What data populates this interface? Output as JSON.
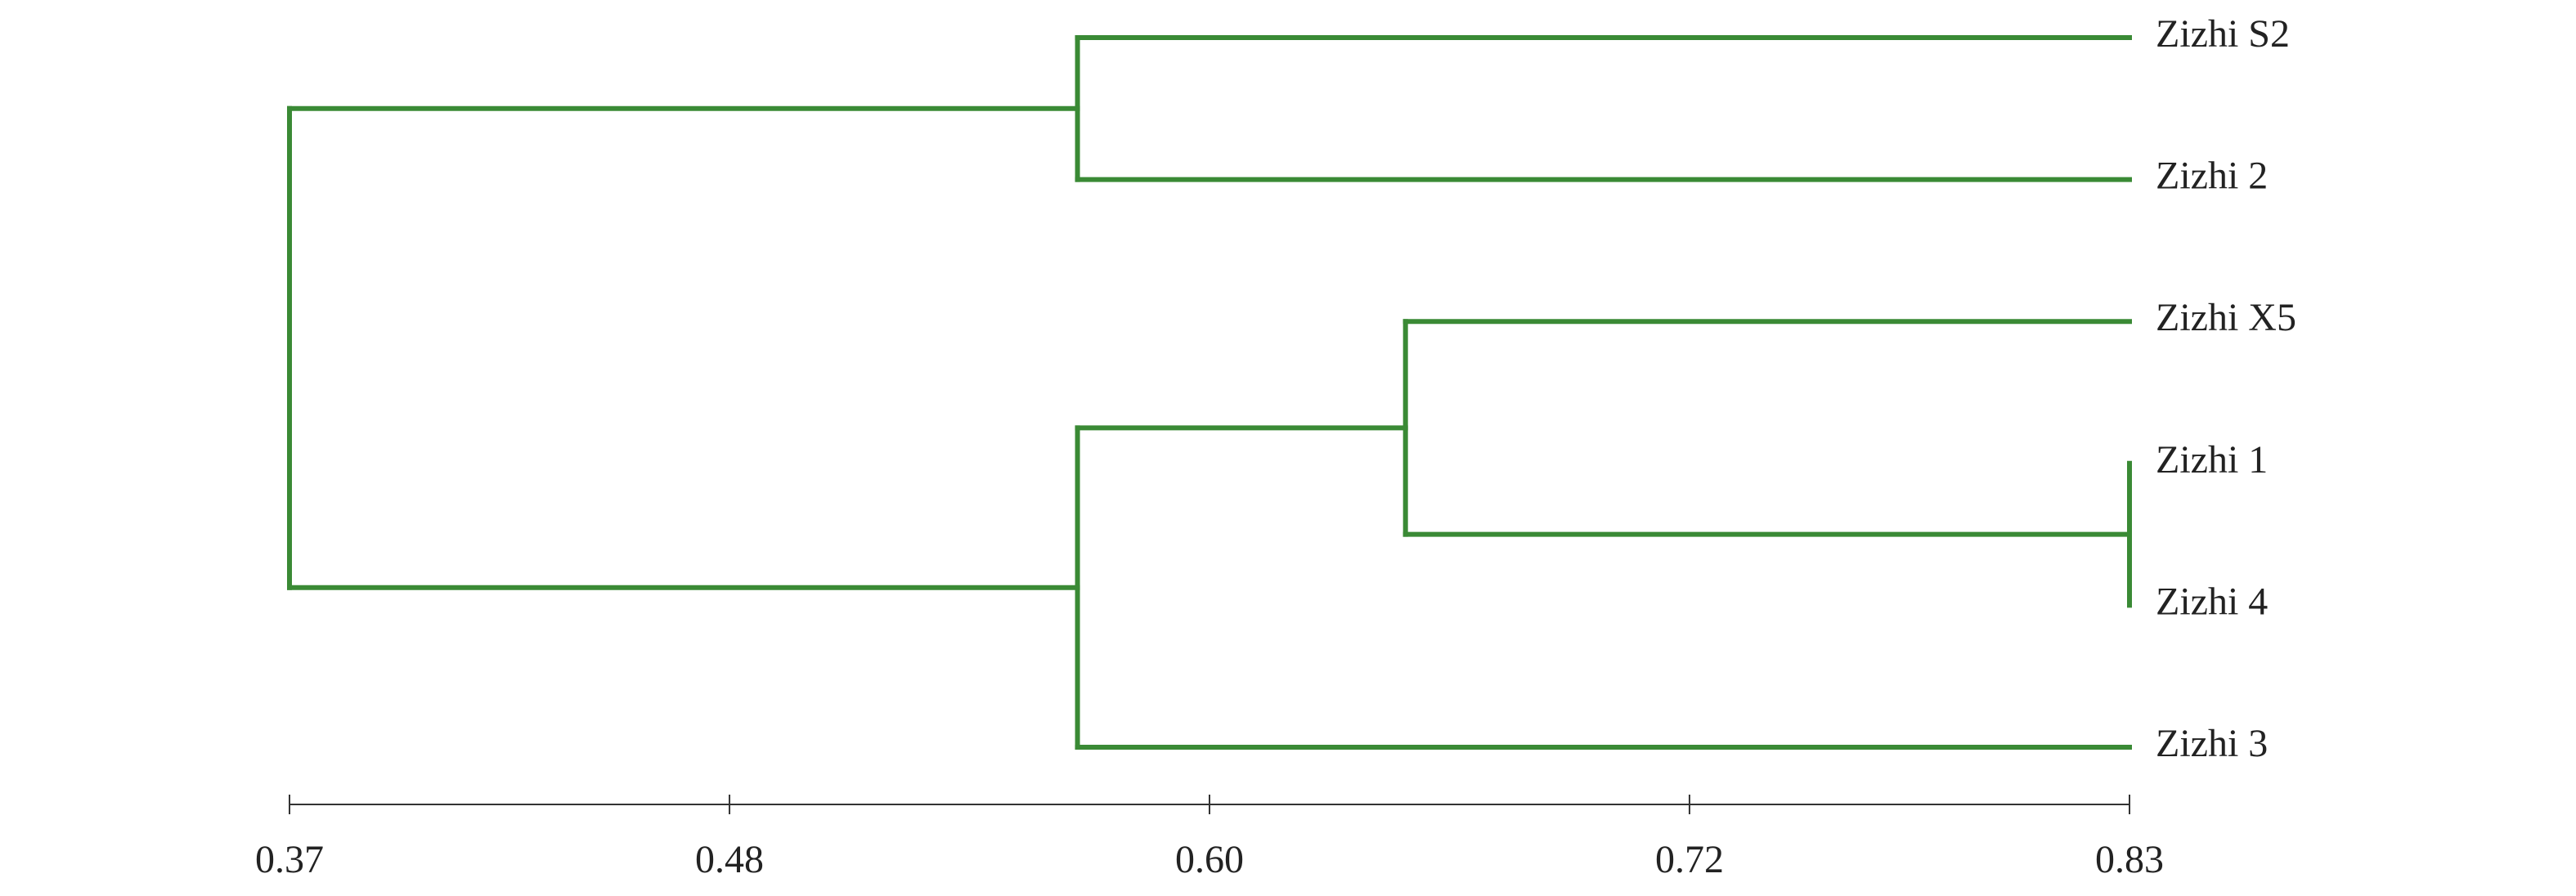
{
  "chart_data": {
    "type": "dendrogram",
    "color": "#3a8a35",
    "xlim": [
      0.37,
      0.83
    ],
    "xticks": [
      0.37,
      0.48,
      {
        "value": 0.6,
        "label": "0.60"
      },
      0.72,
      0.83
    ],
    "tree": {
      "height": 0.37,
      "children": [
        {
          "height": 0.567,
          "children": [
            {
              "label": "Zizhi S2"
            },
            {
              "label": "Zizhi 2"
            }
          ]
        },
        {
          "height": 0.567,
          "children": [
            {
              "height": 0.649,
              "children": [
                {
                  "label": "Zizhi X5"
                },
                {
                  "height": 0.83,
                  "children": [
                    {
                      "label": "Zizhi 1"
                    },
                    {
                      "label": "Zizhi 4"
                    }
                  ]
                }
              ]
            },
            {
              "label": "Zizhi 3"
            }
          ]
        }
      ]
    }
  }
}
